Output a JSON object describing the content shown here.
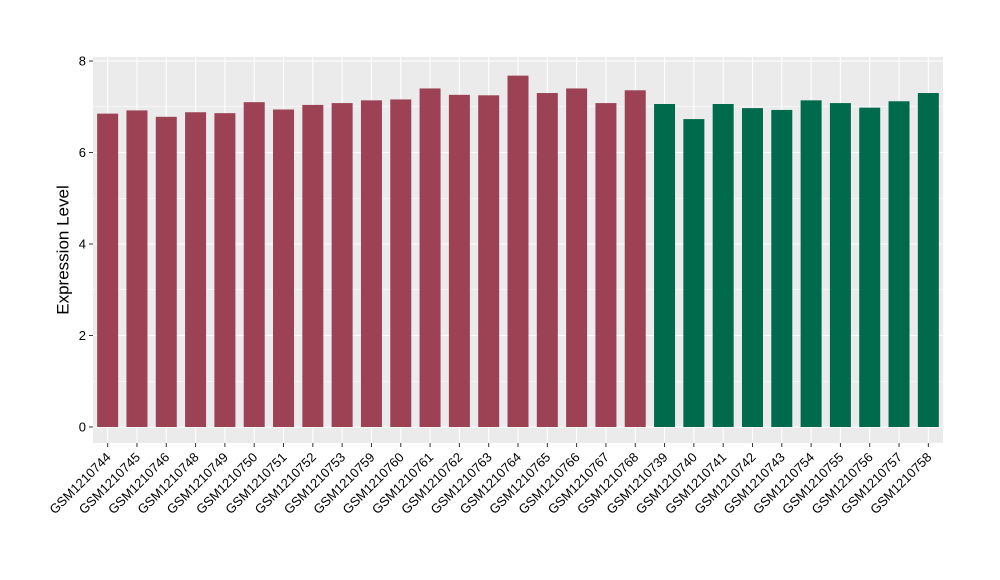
{
  "figure": {
    "background_color": "#FFFFFF",
    "panel_background_color": "#EBEBEB",
    "gridline_color": "#FFFFFF",
    "axis_text_color": "#000000",
    "tick_mark_color": "#333333",
    "bar_color_left_group": "#9C4254",
    "bar_color_right_group": "#006B4C"
  },
  "chart_data": {
    "type": "bar",
    "title": "",
    "xlabel": "",
    "ylabel": "Expression Level",
    "ylim": [
      0,
      8
    ],
    "yticks": [
      0,
      2,
      4,
      6,
      8
    ],
    "yticks_minor": [
      1,
      3,
      5,
      7
    ],
    "grid": "on",
    "legend_position": "none",
    "x_label_angle_deg": 45,
    "categories": [
      "GSM1210744",
      "GSM1210745",
      "GSM1210746",
      "GSM1210748",
      "GSM1210749",
      "GSM1210750",
      "GSM1210751",
      "GSM1210752",
      "GSM1210753",
      "GSM1210759",
      "GSM1210760",
      "GSM1210761",
      "GSM1210762",
      "GSM1210763",
      "GSM1210764",
      "GSM1210765",
      "GSM1210766",
      "GSM1210767",
      "GSM1210768",
      "GSM1210739",
      "GSM1210740",
      "GSM1210741",
      "GSM1210742",
      "GSM1210743",
      "GSM1210754",
      "GSM1210755",
      "GSM1210756",
      "GSM1210757",
      "GSM1210758"
    ],
    "values": [
      6.85,
      6.92,
      6.78,
      6.88,
      6.86,
      7.1,
      6.94,
      7.04,
      7.08,
      7.14,
      7.16,
      7.4,
      7.26,
      7.25,
      7.68,
      7.3,
      7.4,
      7.08,
      7.36,
      7.06,
      6.73,
      7.06,
      6.97,
      6.93,
      7.14,
      7.08,
      6.98,
      7.12,
      7.3
    ],
    "colors": [
      "#9C4254",
      "#9C4254",
      "#9C4254",
      "#9C4254",
      "#9C4254",
      "#9C4254",
      "#9C4254",
      "#9C4254",
      "#9C4254",
      "#9C4254",
      "#9C4254",
      "#9C4254",
      "#9C4254",
      "#9C4254",
      "#9C4254",
      "#9C4254",
      "#9C4254",
      "#9C4254",
      "#9C4254",
      "#006B4C",
      "#006B4C",
      "#006B4C",
      "#006B4C",
      "#006B4C",
      "#006B4C",
      "#006B4C",
      "#006B4C",
      "#006B4C",
      "#006B4C"
    ]
  }
}
